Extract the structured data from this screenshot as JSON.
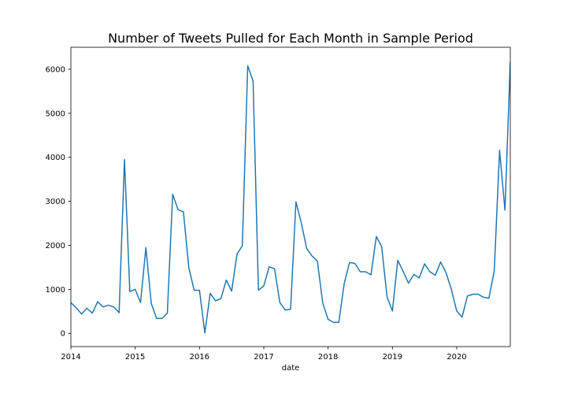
{
  "chart_data": {
    "type": "line",
    "title": "Number of Tweets Pulled for Each Month in Sample Period",
    "xlabel": "date",
    "ylabel": "",
    "x_start": "2014-01",
    "x_end": "2020-11",
    "x_ticks": [
      "2014",
      "2015",
      "2016",
      "2017",
      "2018",
      "2019",
      "2020"
    ],
    "y_ticks": [
      "0",
      "1000",
      "2000",
      "3000",
      "4000",
      "5000",
      "6000"
    ],
    "ylim": [
      -300,
      6500
    ],
    "grid": false,
    "series": [
      {
        "color": "#1f77b4",
        "x": [
          "2014-01",
          "2014-02",
          "2014-03",
          "2014-04",
          "2014-05",
          "2014-06",
          "2014-07",
          "2014-08",
          "2014-09",
          "2014-10",
          "2014-11",
          "2014-12",
          "2015-01",
          "2015-02",
          "2015-03",
          "2015-04",
          "2015-05",
          "2015-06",
          "2015-07",
          "2015-08",
          "2015-09",
          "2015-10",
          "2015-11",
          "2015-12",
          "2016-01",
          "2016-02",
          "2016-03",
          "2016-04",
          "2016-05",
          "2016-06",
          "2016-07",
          "2016-08",
          "2016-09",
          "2016-10",
          "2016-11",
          "2016-12",
          "2017-01",
          "2017-02",
          "2017-03",
          "2017-04",
          "2017-05",
          "2017-06",
          "2017-07",
          "2017-08",
          "2017-09",
          "2017-10",
          "2017-11",
          "2017-12",
          "2018-01",
          "2018-02",
          "2018-03",
          "2018-04",
          "2018-05",
          "2018-06",
          "2018-07",
          "2018-08",
          "2018-09",
          "2018-10",
          "2018-11",
          "2018-12",
          "2019-01",
          "2019-02",
          "2019-03",
          "2019-04",
          "2019-05",
          "2019-06",
          "2019-07",
          "2019-08",
          "2019-09",
          "2019-10",
          "2019-11",
          "2019-12",
          "2020-01",
          "2020-02",
          "2020-03",
          "2020-04",
          "2020-05",
          "2020-06",
          "2020-07",
          "2020-08",
          "2020-09",
          "2020-10",
          "2020-11"
        ],
        "values": [
          700,
          580,
          440,
          570,
          460,
          720,
          600,
          640,
          600,
          470,
          3950,
          950,
          1000,
          700,
          1950,
          680,
          340,
          340,
          460,
          3160,
          2810,
          2760,
          1500,
          980,
          980,
          10,
          910,
          740,
          790,
          1210,
          960,
          1800,
          1990,
          6080,
          5730,
          980,
          1080,
          1510,
          1470,
          700,
          530,
          550,
          2990,
          2510,
          1930,
          1760,
          1640,
          690,
          320,
          250,
          250,
          1130,
          1610,
          1590,
          1400,
          1400,
          1330,
          2200,
          1970,
          830,
          510,
          1660,
          1410,
          1140,
          1340,
          1260,
          1580,
          1400,
          1320,
          1620,
          1380,
          1000,
          510,
          370,
          850,
          890,
          890,
          820,
          800,
          1410,
          4160,
          2800,
          6180
        ]
      }
    ]
  }
}
